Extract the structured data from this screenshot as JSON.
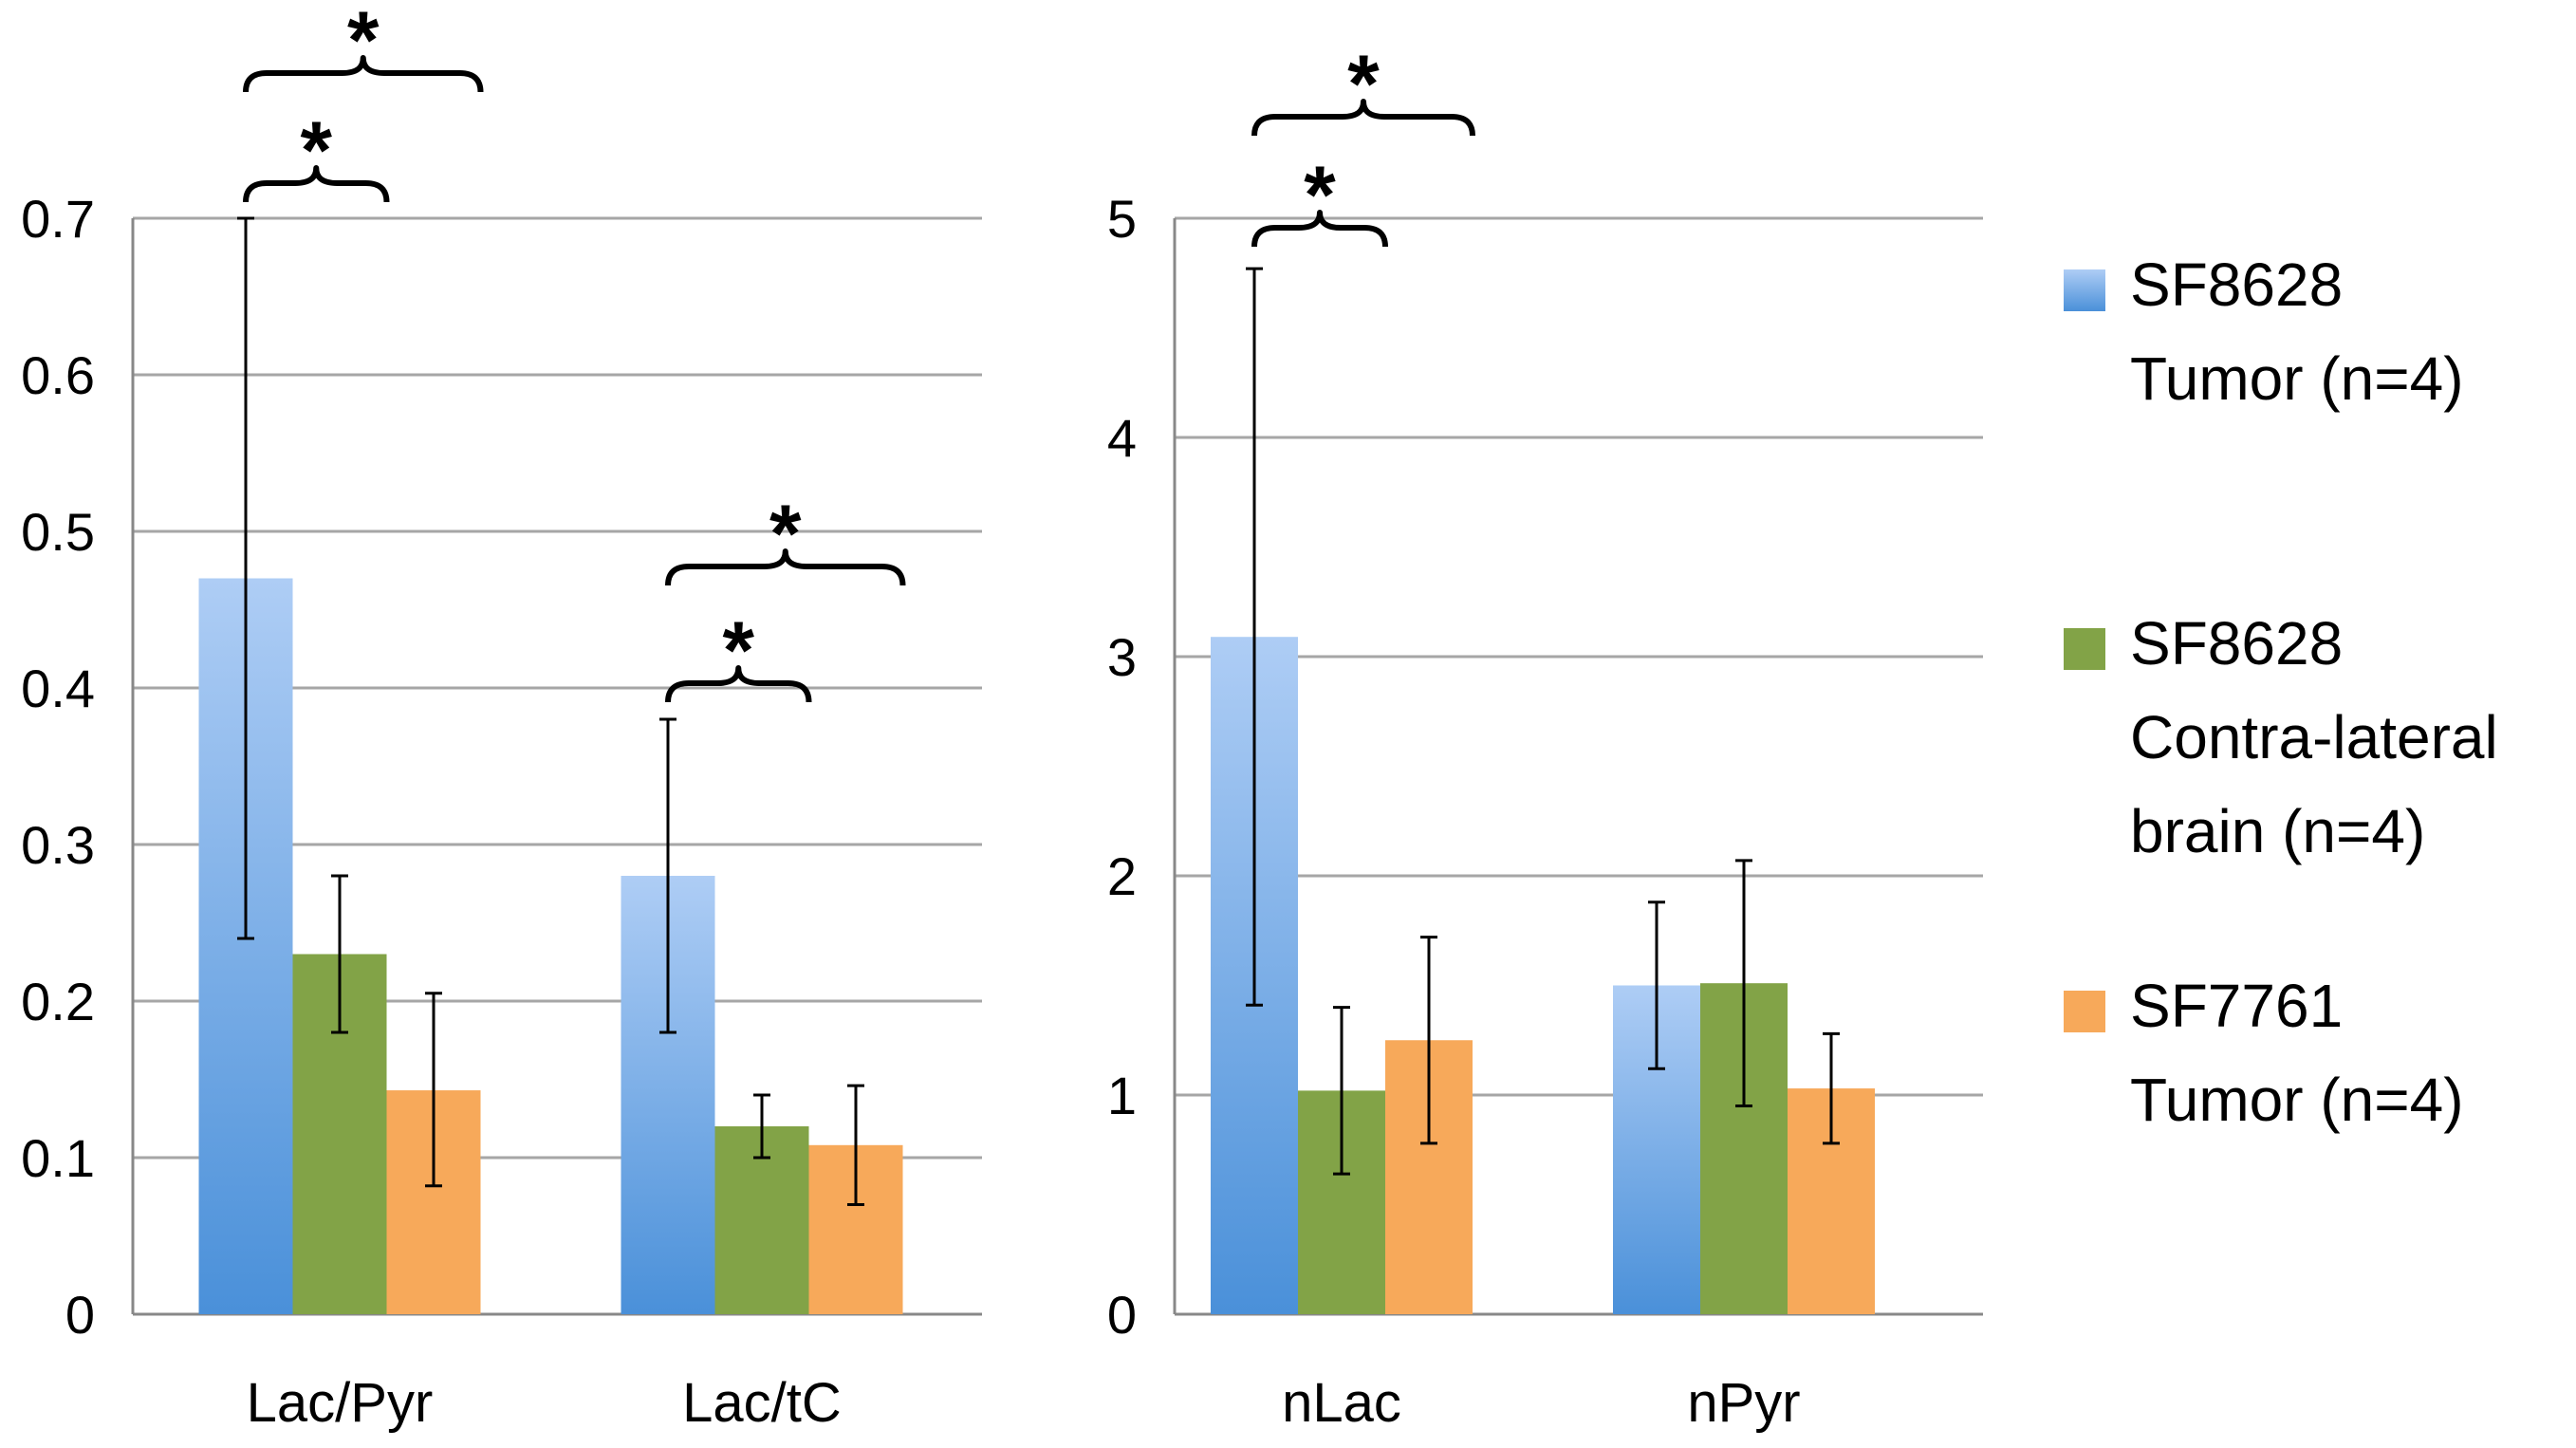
{
  "colors": {
    "tumor_top": "#aecdf5",
    "tumor_bottom": "#4a90d9",
    "contra": "#82a347",
    "sf7761": "#f7a95a",
    "grid": "#a6a6a6",
    "axis": "#888888",
    "errorbar": "#000000"
  },
  "legend": [
    {
      "lines": [
        "SF8628",
        "Tumor (n=4)"
      ],
      "color_key": "tumor"
    },
    {
      "lines": [
        "SF8628",
        "Contra-lateral",
        "brain (n=4)"
      ],
      "color_key": "contra"
    },
    {
      "lines": [
        "SF7761",
        "Tumor (n=4)"
      ],
      "color_key": "sf7761"
    }
  ],
  "significance_marker": "*",
  "chart_data": [
    {
      "type": "bar",
      "title": "",
      "xlabel": "",
      "ylabel": "",
      "ylim": [
        0,
        0.7
      ],
      "yticks": [
        "0",
        "0.1",
        "0.2",
        "0.3",
        "0.4",
        "0.5",
        "0.6",
        "0.7"
      ],
      "categories": [
        "Lac/Pyr",
        "Lac/tC"
      ],
      "series": [
        {
          "name": "SF8628 Tumor (n=4)",
          "color_key": "tumor",
          "values": [
            0.47,
            0.28
          ],
          "err_low": [
            0.24,
            0.18
          ],
          "err_high": [
            0.7,
            0.38
          ]
        },
        {
          "name": "SF8628 Contra-lateral brain (n=4)",
          "color_key": "contra",
          "values": [
            0.23,
            0.12
          ],
          "err_low": [
            0.18,
            0.1
          ],
          "err_high": [
            0.28,
            0.14
          ]
        },
        {
          "name": "SF7761 Tumor (n=4)",
          "color_key": "sf7761",
          "values": [
            0.143,
            0.108
          ],
          "err_low": [
            0.082,
            0.07
          ],
          "err_high": [
            0.205,
            0.146
          ]
        }
      ],
      "significance": [
        {
          "category": 0,
          "from_series": 0,
          "to_series": 1,
          "level": 1,
          "label": "*"
        },
        {
          "category": 0,
          "from_series": 0,
          "to_series": 2,
          "level": 2,
          "label": "*"
        },
        {
          "category": 1,
          "from_series": 0,
          "to_series": 1,
          "level": 1,
          "label": "*"
        },
        {
          "category": 1,
          "from_series": 0,
          "to_series": 2,
          "level": 2,
          "label": "*"
        }
      ]
    },
    {
      "type": "bar",
      "title": "",
      "xlabel": "",
      "ylabel": "",
      "ylim": [
        0,
        5
      ],
      "yticks": [
        "0",
        "1",
        "2",
        "3",
        "4",
        "5"
      ],
      "categories": [
        "nLac",
        "nPyr"
      ],
      "series": [
        {
          "name": "SF8628 Tumor (n=4)",
          "color_key": "tumor",
          "values": [
            3.09,
            1.5
          ],
          "err_low": [
            1.41,
            1.12
          ],
          "err_high": [
            4.77,
            1.88
          ]
        },
        {
          "name": "SF8628 Contra-lateral brain (n=4)",
          "color_key": "contra",
          "values": [
            1.02,
            1.51
          ],
          "err_low": [
            0.64,
            0.95
          ],
          "err_high": [
            1.4,
            2.07
          ]
        },
        {
          "name": "SF7761 Tumor (n=4)",
          "color_key": "sf7761",
          "values": [
            1.25,
            1.03
          ],
          "err_low": [
            0.78,
            0.78
          ],
          "err_high": [
            1.72,
            1.28
          ]
        }
      ],
      "significance": [
        {
          "category": 0,
          "from_series": 0,
          "to_series": 1,
          "level": 1,
          "label": "*"
        },
        {
          "category": 0,
          "from_series": 0,
          "to_series": 2,
          "level": 2,
          "label": "*"
        }
      ]
    }
  ]
}
